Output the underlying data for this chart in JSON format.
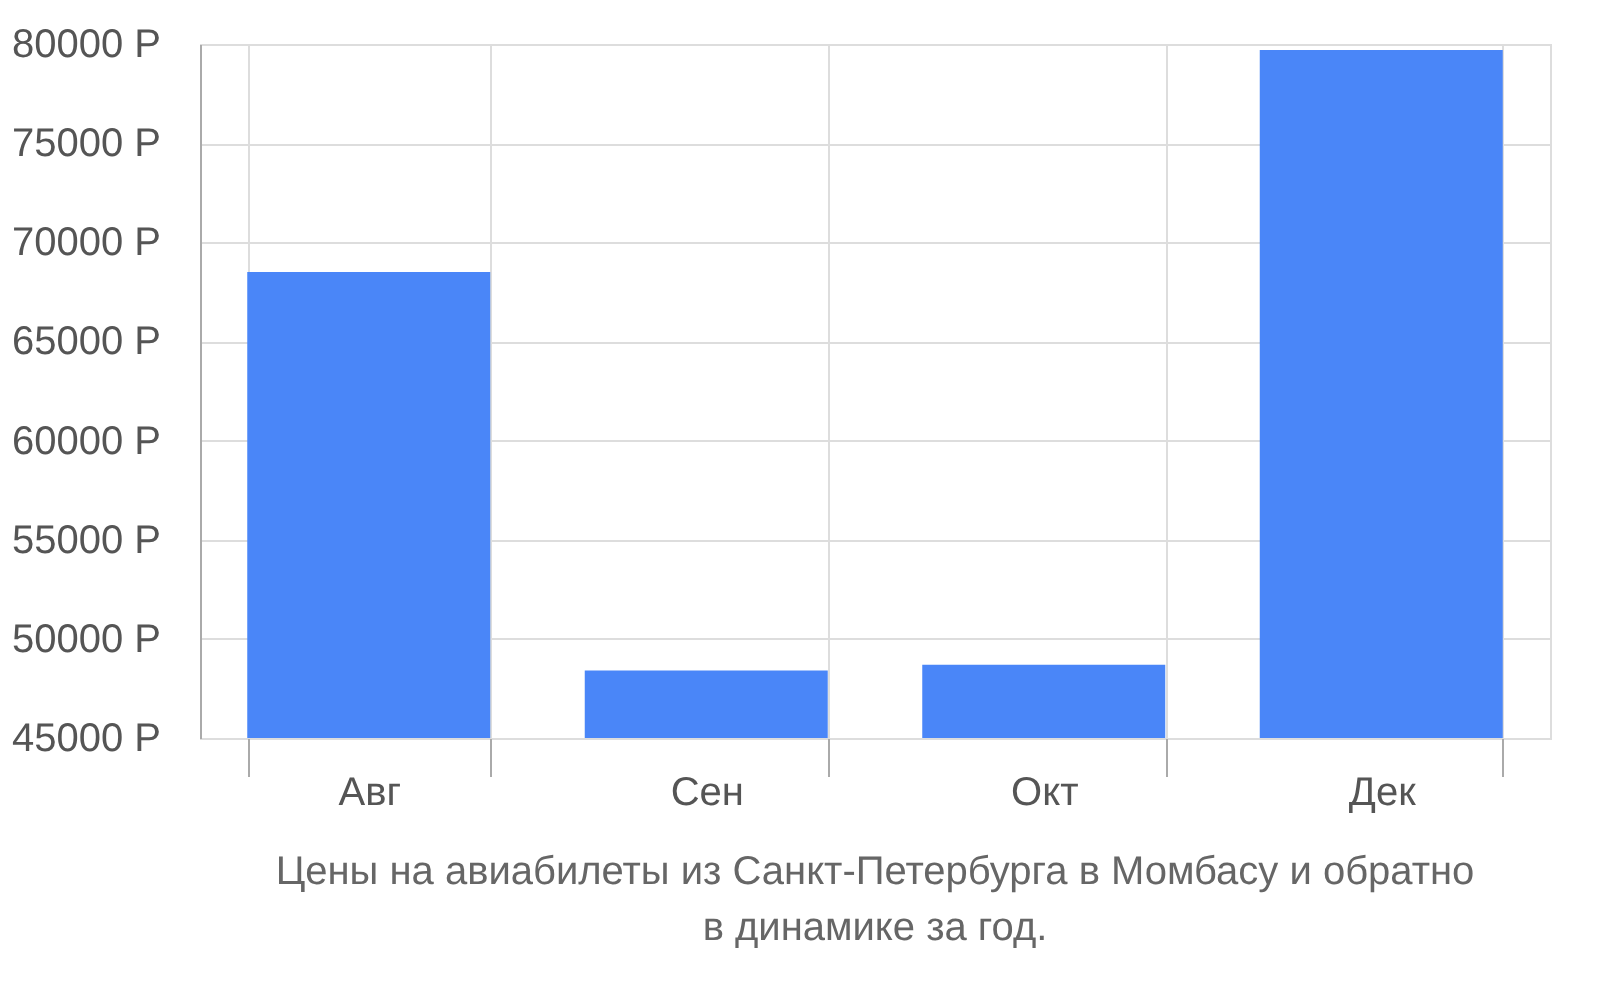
{
  "chart_data": {
    "type": "bar",
    "categories": [
      "Авг",
      "Сен",
      "Окт",
      "Дек"
    ],
    "values": [
      68500,
      48400,
      48700,
      79700
    ],
    "color": "#4a86f8",
    "ylim": [
      45000,
      80000
    ],
    "yticks": [
      {
        "value": 45000,
        "label": "45000 Р"
      },
      {
        "value": 50000,
        "label": "50000 Р"
      },
      {
        "value": 55000,
        "label": "55000 Р"
      },
      {
        "value": 60000,
        "label": "60000 Р"
      },
      {
        "value": 65000,
        "label": "65000 Р"
      },
      {
        "value": 70000,
        "label": "70000 Р"
      },
      {
        "value": 75000,
        "label": "75000 Р"
      },
      {
        "value": 80000,
        "label": "80000 Р"
      }
    ],
    "grid": true,
    "annotations": [
      "Цены на авиабилеты из Санкт-Петербурга в Момбасу и обратно",
      "в динамике за год."
    ]
  }
}
